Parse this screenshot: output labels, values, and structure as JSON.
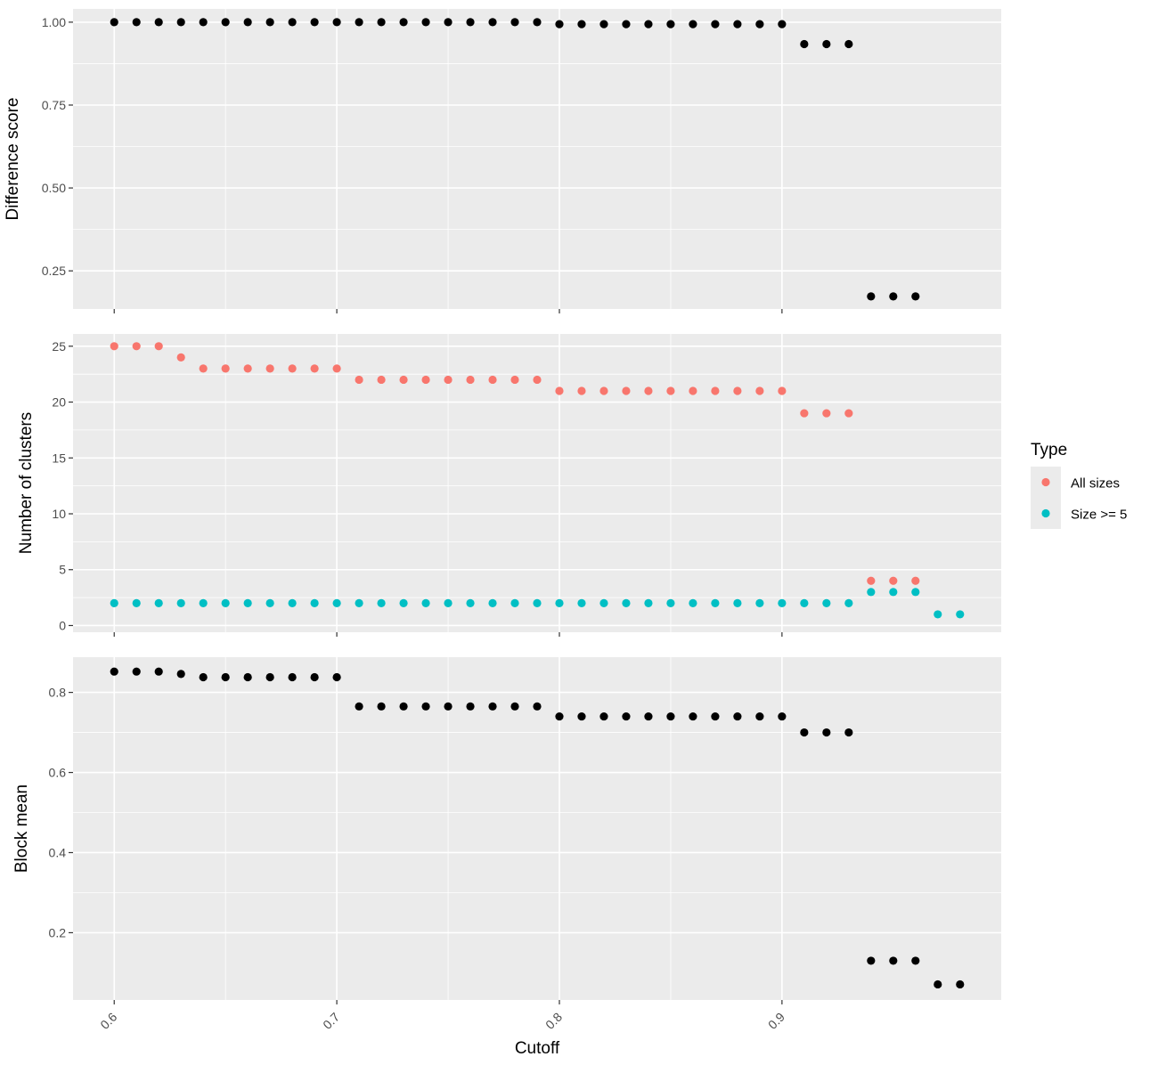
{
  "chart_data": {
    "type": "scatter",
    "facets": "vertical",
    "shared_x": true,
    "xlabel": "Cutoff",
    "x_ticks": [
      0.6,
      0.7,
      0.8,
      0.9
    ],
    "xlim": [
      0.5815,
      0.9985
    ],
    "panel_background": "#EBEBEB",
    "grid": true,
    "grid_color": "#FFFFFF",
    "legend": {
      "title": "Type",
      "placement": "right",
      "entries": [
        {
          "label": "All sizes",
          "color": "#F8766D"
        },
        {
          "label": "Size >= 5",
          "color": "#00BFC4"
        }
      ]
    },
    "panels": [
      {
        "ylabel": "Difference score",
        "ylim": [
          0.135,
          1.04
        ],
        "y_ticks": [
          0.25,
          0.5,
          0.75,
          1.0
        ],
        "y_tick_labels": [
          "0.25",
          "0.50",
          "0.75",
          "1.00"
        ],
        "series": [
          {
            "color": "#000000",
            "x": [
              0.6,
              0.61,
              0.62,
              0.63,
              0.64,
              0.65,
              0.66,
              0.67,
              0.68,
              0.69,
              0.7,
              0.71,
              0.72,
              0.73,
              0.74,
              0.75,
              0.76,
              0.77,
              0.78,
              0.79,
              0.8,
              0.81,
              0.82,
              0.83,
              0.84,
              0.85,
              0.86,
              0.87,
              0.88,
              0.89,
              0.9,
              0.91,
              0.92,
              0.93,
              0.94,
              0.95,
              0.96
            ],
            "y": [
              1.0,
              1.0,
              1.0,
              1.0,
              1.0,
              1.0,
              1.0,
              1.0,
              1.0,
              1.0,
              1.0,
              1.0,
              1.0,
              1.0,
              1.0,
              1.0,
              1.0,
              1.0,
              1.0,
              1.0,
              0.994,
              0.994,
              0.994,
              0.994,
              0.994,
              0.994,
              0.994,
              0.994,
              0.994,
              0.994,
              0.994,
              0.934,
              0.934,
              0.934,
              0.173,
              0.173,
              0.173
            ]
          }
        ]
      },
      {
        "ylabel": "Number of clusters",
        "ylim": [
          -0.6,
          26.1
        ],
        "y_ticks": [
          0,
          5,
          10,
          15,
          20,
          25
        ],
        "y_tick_labels": [
          "0",
          "5",
          "10",
          "15",
          "20",
          "25"
        ],
        "series": [
          {
            "name": "All sizes",
            "color": "#F8766D",
            "x": [
              0.6,
              0.61,
              0.62,
              0.63,
              0.64,
              0.65,
              0.66,
              0.67,
              0.68,
              0.69,
              0.7,
              0.71,
              0.72,
              0.73,
              0.74,
              0.75,
              0.76,
              0.77,
              0.78,
              0.79,
              0.8,
              0.81,
              0.82,
              0.83,
              0.84,
              0.85,
              0.86,
              0.87,
              0.88,
              0.89,
              0.9,
              0.91,
              0.92,
              0.93,
              0.94,
              0.95,
              0.96
            ],
            "y": [
              25,
              25,
              25,
              24,
              23,
              23,
              23,
              23,
              23,
              23,
              23,
              22,
              22,
              22,
              22,
              22,
              22,
              22,
              22,
              22,
              21,
              21,
              21,
              21,
              21,
              21,
              21,
              21,
              21,
              21,
              21,
              19,
              19,
              19,
              4,
              4,
              4
            ]
          },
          {
            "name": "Size >= 5",
            "color": "#00BFC4",
            "x": [
              0.6,
              0.61,
              0.62,
              0.63,
              0.64,
              0.65,
              0.66,
              0.67,
              0.68,
              0.69,
              0.7,
              0.71,
              0.72,
              0.73,
              0.74,
              0.75,
              0.76,
              0.77,
              0.78,
              0.79,
              0.8,
              0.81,
              0.82,
              0.83,
              0.84,
              0.85,
              0.86,
              0.87,
              0.88,
              0.89,
              0.9,
              0.91,
              0.92,
              0.93,
              0.94,
              0.95,
              0.96,
              0.97,
              0.98
            ],
            "y": [
              2,
              2,
              2,
              2,
              2,
              2,
              2,
              2,
              2,
              2,
              2,
              2,
              2,
              2,
              2,
              2,
              2,
              2,
              2,
              2,
              2,
              2,
              2,
              2,
              2,
              2,
              2,
              2,
              2,
              2,
              2,
              2,
              2,
              2,
              3,
              3,
              3,
              1,
              1
            ]
          }
        ]
      },
      {
        "ylabel": "Block mean",
        "ylim": [
          0.032,
          0.888
        ],
        "y_ticks": [
          0.2,
          0.4,
          0.6,
          0.8
        ],
        "y_tick_labels": [
          "0.2",
          "0.4",
          "0.6",
          "0.8"
        ],
        "series": [
          {
            "color": "#000000",
            "x": [
              0.6,
              0.61,
              0.62,
              0.63,
              0.64,
              0.65,
              0.66,
              0.67,
              0.68,
              0.69,
              0.7,
              0.71,
              0.72,
              0.73,
              0.74,
              0.75,
              0.76,
              0.77,
              0.78,
              0.79,
              0.8,
              0.81,
              0.82,
              0.83,
              0.84,
              0.85,
              0.86,
              0.87,
              0.88,
              0.89,
              0.9,
              0.91,
              0.92,
              0.93,
              0.94,
              0.95,
              0.96,
              0.97,
              0.98
            ],
            "y": [
              0.852,
              0.852,
              0.852,
              0.846,
              0.838,
              0.838,
              0.838,
              0.838,
              0.838,
              0.838,
              0.838,
              0.765,
              0.765,
              0.765,
              0.765,
              0.765,
              0.765,
              0.765,
              0.765,
              0.765,
              0.74,
              0.74,
              0.74,
              0.74,
              0.74,
              0.74,
              0.74,
              0.74,
              0.74,
              0.74,
              0.74,
              0.7,
              0.7,
              0.7,
              0.13,
              0.13,
              0.13,
              0.071,
              0.071
            ]
          }
        ]
      }
    ]
  }
}
